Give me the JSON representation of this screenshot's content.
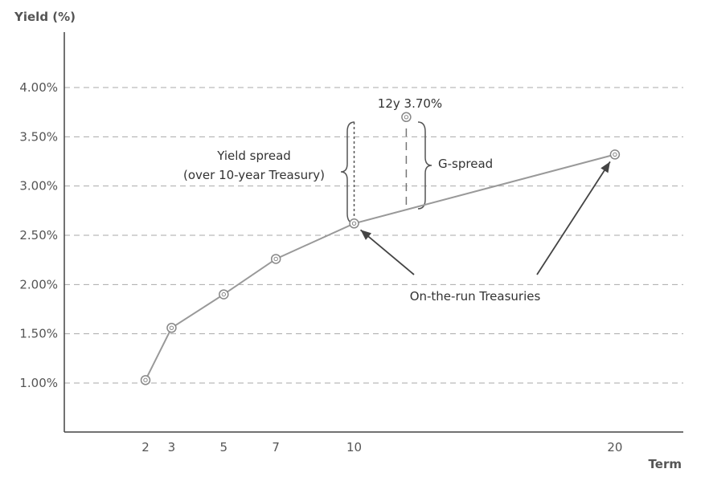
{
  "chart_data": {
    "type": "line",
    "ylabel": "Yield (%)",
    "xlabel": "Term",
    "y_ticks": [
      "1.00%",
      "1.50%",
      "2.00%",
      "2.50%",
      "3.00%",
      "3.50%",
      "4.00%"
    ],
    "x_ticks": [
      "2",
      "3",
      "5",
      "7",
      "10",
      "20"
    ],
    "grid": "horizontal dashed",
    "series": [
      {
        "x": [
          2,
          3,
          5,
          7,
          10,
          20
        ],
        "y": [
          1.03,
          1.56,
          1.9,
          2.26,
          2.62,
          3.32
        ]
      }
    ],
    "points": [
      {
        "label": "12y 3.70%",
        "x": 12,
        "y": 3.7
      }
    ],
    "annotations": {
      "yield_spread_line1": "Yield spread",
      "yield_spread_line2": "(over 10-year Treasury)",
      "g_spread": "G-spread",
      "on_the_run": "On-the-run Treasuries"
    },
    "colors": {
      "line": "#999999",
      "grid": "#aaaaaa",
      "text": "#555555",
      "annotation": "#333333"
    }
  }
}
